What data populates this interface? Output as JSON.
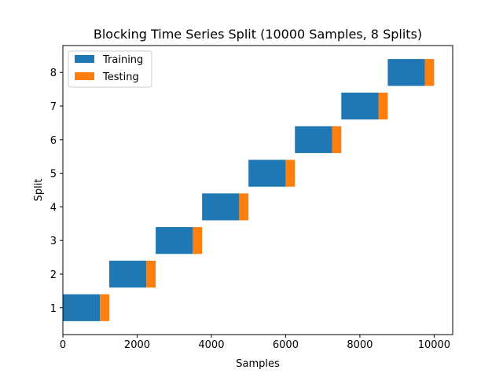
{
  "chart_data": {
    "type": "bar",
    "orientation": "horizontal",
    "stacked": true,
    "title": "Blocking Time Series Split (10000 Samples, 8 Splits)",
    "xlabel": "Samples",
    "ylabel": "Split",
    "xlim": [
      0,
      10500
    ],
    "ylim": [
      0.2,
      8.8
    ],
    "xticks": [
      0,
      2000,
      4000,
      6000,
      8000,
      10000
    ],
    "yticks": [
      1,
      2,
      3,
      4,
      5,
      6,
      7,
      8
    ],
    "grid": false,
    "legend_position": "top-left",
    "categories": [
      1,
      2,
      3,
      4,
      5,
      6,
      7,
      8
    ],
    "series": [
      {
        "name": "Training",
        "color": "#1f77b4",
        "values": [
          {
            "split": 1,
            "start": 0,
            "end": 1000
          },
          {
            "split": 2,
            "start": 1250,
            "end": 2250
          },
          {
            "split": 3,
            "start": 2500,
            "end": 3500
          },
          {
            "split": 4,
            "start": 3750,
            "end": 4750
          },
          {
            "split": 5,
            "start": 5000,
            "end": 6000
          },
          {
            "split": 6,
            "start": 6250,
            "end": 7250
          },
          {
            "split": 7,
            "start": 7500,
            "end": 8500
          },
          {
            "split": 8,
            "start": 8750,
            "end": 9750
          }
        ]
      },
      {
        "name": "Testing",
        "color": "#ff7f0e",
        "values": [
          {
            "split": 1,
            "start": 1000,
            "end": 1250
          },
          {
            "split": 2,
            "start": 2250,
            "end": 2500
          },
          {
            "split": 3,
            "start": 3500,
            "end": 3750
          },
          {
            "split": 4,
            "start": 4750,
            "end": 5000
          },
          {
            "split": 5,
            "start": 6000,
            "end": 6250
          },
          {
            "split": 6,
            "start": 7250,
            "end": 7500
          },
          {
            "split": 7,
            "start": 8500,
            "end": 8750
          },
          {
            "split": 8,
            "start": 9750,
            "end": 10000
          }
        ]
      }
    ]
  }
}
